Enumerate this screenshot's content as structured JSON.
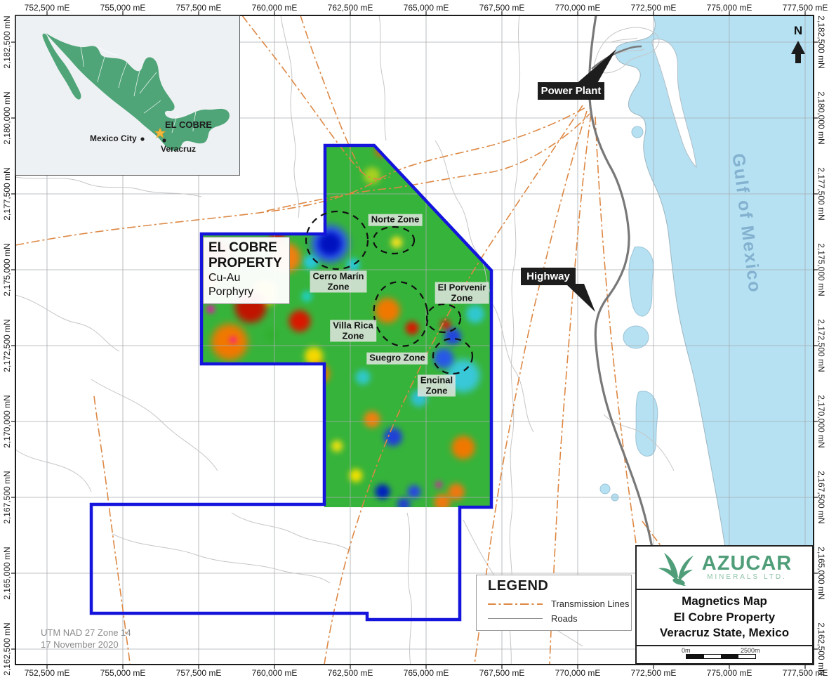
{
  "axes": {
    "top": [
      "752,500 mE",
      "755,000 mE",
      "757,500 mE",
      "760,000 mE",
      "762,500 mE",
      "765,000 mE",
      "767,500 mE",
      "770,000 mE",
      "772,500 mE",
      "775,000 mE",
      "777,500 mE"
    ],
    "bottom": [
      "752,500 mE",
      "755,000 mE",
      "757,500 mE",
      "760,000 mE",
      "762,500 mE",
      "765,000 mE",
      "767,500 mE",
      "770,000 mE",
      "772,500 mE",
      "775,000 mE",
      "777,500 mE"
    ],
    "left": [
      "2,182,500 mN",
      "2,180,000 mN",
      "2,177,500 mN",
      "2,175,000 mN",
      "2,172,500 mN",
      "2,170,000 mN",
      "2,167,500 mN",
      "2,165,000 mN",
      "2,162,500 mN"
    ],
    "right": [
      "2,182,500 mN",
      "2,180,000 mN",
      "2,177,500 mN",
      "2,175,000 mN",
      "2,172,500 mN",
      "2,170,000 mN",
      "2,167,500 mN",
      "2,165,000 mN",
      "2,162,500 mN"
    ]
  },
  "inset": {
    "el_cobre": "EL COBRE",
    "mexico_city": "Mexico City",
    "veracruz": "Veracruz"
  },
  "property": {
    "title_line1": "EL COBRE",
    "title_line2": "PROPERTY",
    "subtitle": "Cu-Au Porphyry"
  },
  "zones": [
    {
      "id": "norte",
      "label": "Norte Zone"
    },
    {
      "id": "cerro-marin",
      "label": "Cerro Marín\nZone"
    },
    {
      "id": "el-porvenir",
      "label": "El Porvenir\nZone"
    },
    {
      "id": "villa-rica",
      "label": "Villa Rica\nZone"
    },
    {
      "id": "suegro",
      "label": "Suegro Zone"
    },
    {
      "id": "encinal",
      "label": "Encinal\nZone"
    }
  ],
  "callouts": {
    "power_plant": "Power Plant",
    "highway": "Highway"
  },
  "water_label": "Gulf of Mexico",
  "north_label": "N",
  "legend": {
    "title": "LEGEND",
    "items": [
      {
        "label": "Transmission Lines"
      },
      {
        "label": "Roads"
      }
    ]
  },
  "title_block": {
    "company": "AZUCAR",
    "company_sub": "MINERALS LTD.",
    "title_lines": [
      "Magnetics Map",
      "El Cobre Property",
      "Veracruz State, Mexico"
    ],
    "scale_start": "0m",
    "scale_end": "2500m"
  },
  "footnote": {
    "line1": "UTM NAD 27 Zone 14",
    "line2": "17 November 2020"
  },
  "colors": {
    "water": "#b5e1f3",
    "property_outline": "#1414dd",
    "transmission_line": "#dd8844",
    "road": "#c6c6c6",
    "highway": "#787878",
    "mexico_green": "#4fa578",
    "azucar_green": "#4f9e79",
    "gulf_text": "#7aa8c8"
  }
}
